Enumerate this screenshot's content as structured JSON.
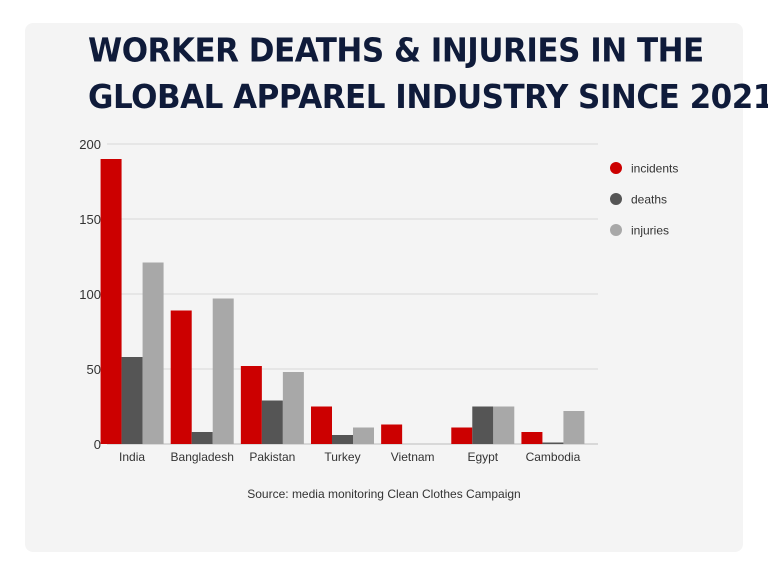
{
  "title_line1": "WORKER DEATHS & INJURIES IN THE",
  "title_line2": "GLOBAL APPAREL INDUSTRY SINCE 2021",
  "source": "Source: media monitoring Clean Clothes Campaign",
  "chart_data": {
    "type": "bar",
    "categories": [
      "India",
      "Bangladesh",
      "Pakistan",
      "Turkey",
      "Vietnam",
      "Egypt",
      "Cambodia"
    ],
    "series": [
      {
        "name": "incidents",
        "color": "#cc0000",
        "values": [
          190,
          89,
          52,
          25,
          13,
          11,
          8
        ]
      },
      {
        "name": "deaths",
        "color": "#555555",
        "values": [
          58,
          8,
          29,
          6,
          0,
          25,
          1
        ]
      },
      {
        "name": "injuries",
        "color": "#a8a8a8",
        "values": [
          121,
          97,
          48,
          11,
          0,
          25,
          22
        ]
      }
    ],
    "yticks": [
      0,
      50,
      100,
      150,
      200
    ],
    "ylim": [
      0,
      200
    ],
    "grid": true,
    "legend": "right"
  }
}
